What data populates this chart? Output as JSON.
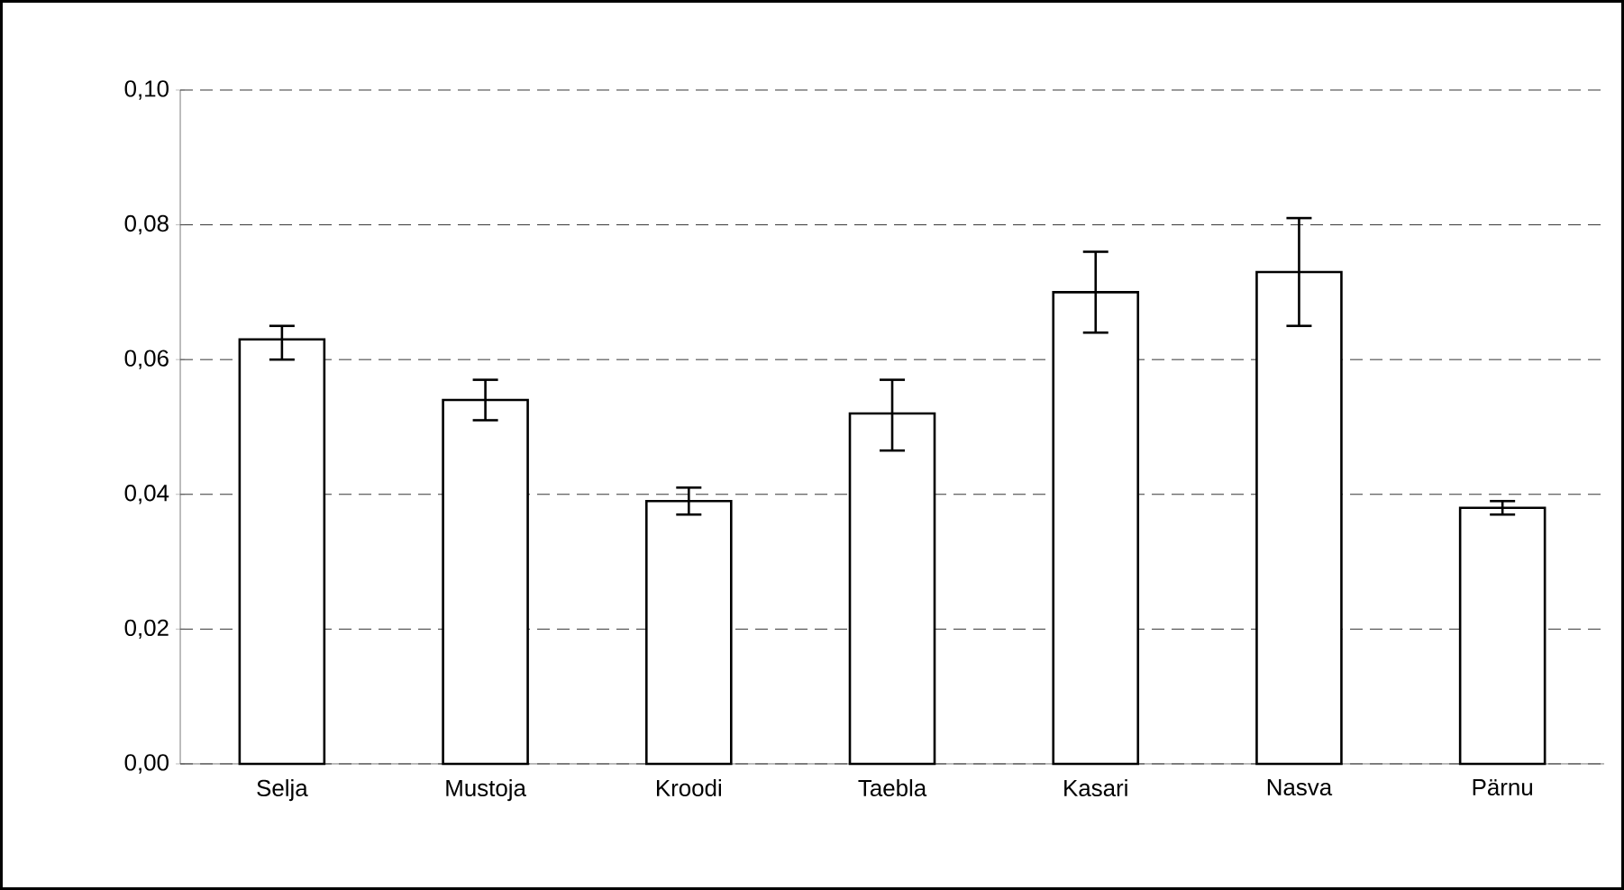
{
  "chart_data": {
    "type": "bar",
    "categories": [
      "Selja",
      "Mustoja",
      "Kroodi",
      "Taebla",
      "Kasari",
      "Nasva",
      "Pärnu"
    ],
    "values": [
      0.063,
      0.054,
      0.039,
      0.052,
      0.07,
      0.073,
      0.038
    ],
    "errors": [
      [
        0.06,
        0.065
      ],
      [
        0.051,
        0.057
      ],
      [
        0.037,
        0.041
      ],
      [
        0.0465,
        0.057
      ],
      [
        0.064,
        0.076
      ],
      [
        0.065,
        0.081
      ],
      [
        0.037,
        0.039
      ]
    ],
    "color": "#ffffff",
    "ylim": [
      0,
      0.1
    ],
    "yticks": [
      {
        "value": 0,
        "label": "0,00"
      },
      {
        "value": 0.02,
        "label": "0,02"
      },
      {
        "value": 0.04,
        "label": "0,04"
      },
      {
        "value": 0.06,
        "label": "0,06"
      },
      {
        "value": 0.08,
        "label": "0,08"
      },
      {
        "value": 0.1,
        "label": "0,10"
      }
    ],
    "grid": "y"
  }
}
